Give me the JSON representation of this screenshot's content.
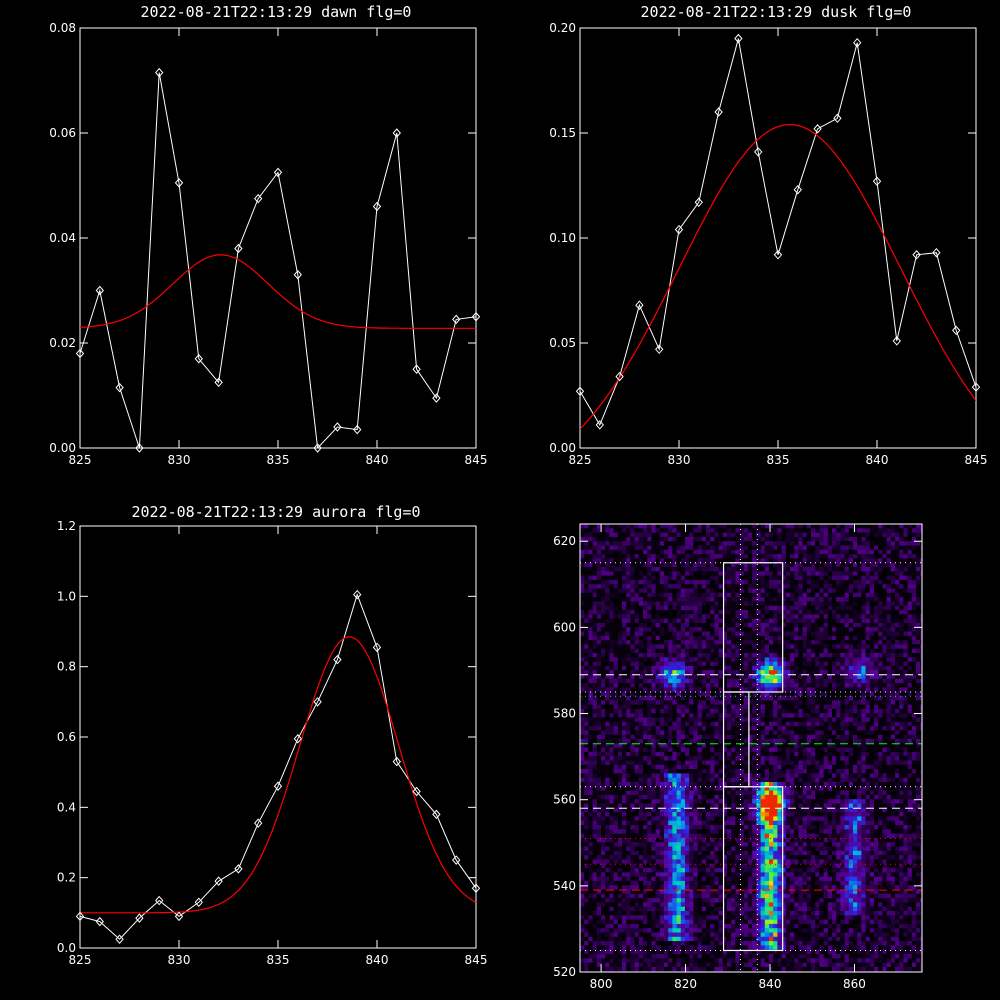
{
  "chart_data": [
    {
      "type": "line",
      "title": "2022-08-21T22:13:29 dawn flg=0",
      "xlim": [
        825,
        845
      ],
      "ylim": [
        0,
        0.08
      ],
      "xticks": [
        "825",
        "830",
        "835",
        "840",
        "845"
      ],
      "yticks": [
        "0.00",
        "0.02",
        "0.04",
        "0.06",
        "0.08"
      ],
      "series": [
        {
          "style": "data",
          "color": "#ffffff",
          "marker": "diamond",
          "x": [
            825,
            826,
            827,
            828,
            829,
            830,
            831,
            832,
            833,
            834,
            835,
            836,
            837,
            838,
            839,
            840,
            841,
            842,
            843,
            844,
            845
          ],
          "y": [
            0.018,
            0.03,
            0.0115,
            0.0,
            0.0715,
            0.0505,
            0.017,
            0.0125,
            0.038,
            0.0475,
            0.0525,
            0.033,
            0.0,
            0.004,
            0.0035,
            0.046,
            0.06,
            0.015,
            0.0095,
            0.0245,
            0.025
          ]
        },
        {
          "style": "fit",
          "color": "#ff0000",
          "model": "gaussian",
          "baseline": 0.0228,
          "amplitude": 0.014,
          "center": 832.1,
          "sigma": 2.4
        }
      ]
    },
    {
      "type": "line",
      "title": "2022-08-21T22:13:29 dusk flg=0",
      "xlim": [
        825,
        845
      ],
      "ylim": [
        0,
        0.2
      ],
      "xticks": [
        "825",
        "830",
        "835",
        "840",
        "845"
      ],
      "yticks": [
        "0.00",
        "0.05",
        "0.10",
        "0.15",
        "0.20"
      ],
      "series": [
        {
          "style": "data",
          "color": "#ffffff",
          "marker": "diamond",
          "x": [
            825,
            826,
            827,
            828,
            829,
            830,
            831,
            832,
            833,
            834,
            835,
            836,
            837,
            838,
            839,
            840,
            841,
            842,
            843,
            844,
            845
          ],
          "y": [
            0.027,
            0.011,
            0.034,
            0.068,
            0.047,
            0.104,
            0.117,
            0.16,
            0.195,
            0.141,
            0.092,
            0.123,
            0.152,
            0.157,
            0.193,
            0.127,
            0.051,
            0.092,
            0.093,
            0.056,
            0.029
          ]
        },
        {
          "style": "fit",
          "color": "#ff0000",
          "model": "gaussian",
          "baseline": -0.02,
          "amplitude": 0.174,
          "center": 835.6,
          "sigma": 5.6
        }
      ]
    },
    {
      "type": "line",
      "title": "2022-08-21T22:13:29 aurora flg=0",
      "xlim": [
        825,
        845
      ],
      "ylim": [
        0,
        1.2
      ],
      "xticks": [
        "825",
        "830",
        "835",
        "840",
        "845"
      ],
      "yticks": [
        "0.0",
        "0.2",
        "0.4",
        "0.6",
        "0.8",
        "1.0",
        "1.2"
      ],
      "series": [
        {
          "style": "data",
          "color": "#ffffff",
          "marker": "diamond",
          "x": [
            825,
            826,
            827,
            828,
            829,
            830,
            831,
            832,
            833,
            834,
            835,
            836,
            837,
            838,
            839,
            840,
            841,
            842,
            843,
            844,
            845
          ],
          "y": [
            0.09,
            0.075,
            0.025,
            0.085,
            0.135,
            0.09,
            0.13,
            0.19,
            0.225,
            0.355,
            0.46,
            0.595,
            0.7,
            0.82,
            1.005,
            0.855,
            0.53,
            0.445,
            0.38,
            0.25,
            0.17
          ]
        },
        {
          "style": "fit",
          "color": "#ff0000",
          "model": "gaussian",
          "baseline": 0.1,
          "amplitude": 0.785,
          "center": 838.6,
          "sigma": 2.5
        }
      ]
    },
    {
      "type": "heatmap",
      "title": "",
      "xlim": [
        795,
        876
      ],
      "ylim": [
        520,
        624
      ],
      "xticks": [
        "800",
        "820",
        "840",
        "860"
      ],
      "yticks": [
        "520",
        "540",
        "560",
        "580",
        "600",
        "620"
      ],
      "bright_columns": [
        {
          "x_center": 818,
          "y_from": 527,
          "y_to": 566,
          "intensity": 0.6
        },
        {
          "x_center": 840,
          "y_from": 525,
          "y_to": 564,
          "intensity": 0.85
        },
        {
          "x_center": 860,
          "y_from": 533,
          "y_to": 560,
          "intensity": 0.4
        }
      ],
      "bright_blobs": [
        {
          "x": 817,
          "y": 589,
          "intensity": 0.7
        },
        {
          "x": 840,
          "y": 589,
          "intensity": 1.0
        },
        {
          "x": 861,
          "y": 590,
          "intensity": 0.45
        },
        {
          "x": 840,
          "y": 559,
          "intensity": 0.95
        }
      ],
      "boxes": [
        {
          "x0": 829,
          "x1": 843,
          "y0": 585,
          "y1": 615
        },
        {
          "x0": 829,
          "x1": 835,
          "y0": 563,
          "y1": 585
        },
        {
          "x0": 829,
          "x1": 843,
          "y0": 525,
          "y1": 563
        }
      ],
      "hlines": [
        {
          "y": 615,
          "color": "#ffffff",
          "dash": "dotted"
        },
        {
          "y": 589,
          "color": "#ffffff",
          "dash": "dashed"
        },
        {
          "y": 585,
          "color": "#ffffff",
          "dash": "dotted"
        },
        {
          "y": 584,
          "color": "#00ff00",
          "dash": "dotted"
        },
        {
          "y": 573,
          "color": "#00ff00",
          "dash": "dashed"
        },
        {
          "y": 563,
          "color": "#ffffff",
          "dash": "dotted"
        },
        {
          "y": 558,
          "color": "#ffffff",
          "dash": "dashed"
        },
        {
          "y": 551,
          "color": "#ff0000",
          "dash": "dotted"
        },
        {
          "y": 545,
          "color": "#ff0000",
          "dash": "dotted"
        },
        {
          "y": 539,
          "color": "#ff0000",
          "dash": "dashed"
        },
        {
          "y": 525,
          "color": "#ffffff",
          "dash": "dotted"
        }
      ],
      "vlines": [
        {
          "x": 833,
          "color": "#ffffff",
          "dash": "dotted"
        },
        {
          "x": 837,
          "color": "#ffffff",
          "dash": "dotted"
        }
      ]
    }
  ]
}
